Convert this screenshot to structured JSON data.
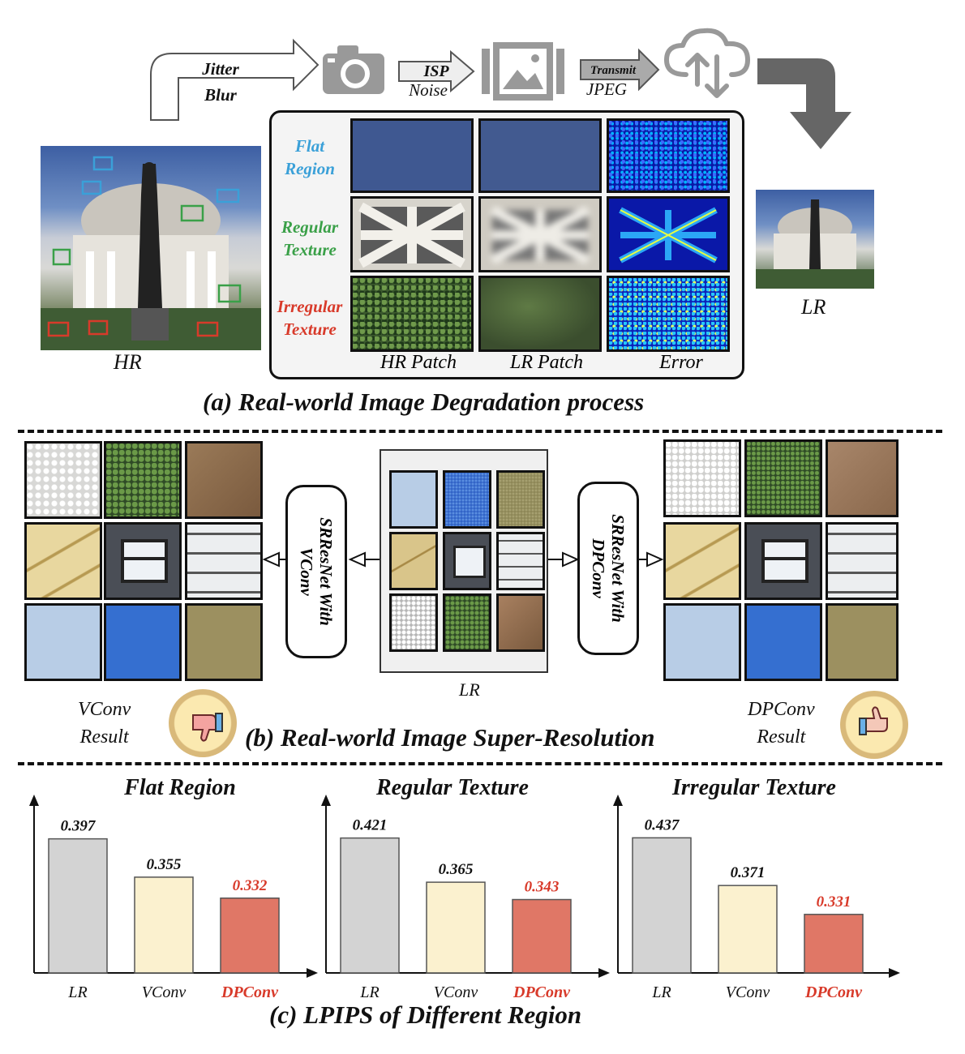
{
  "section_a": {
    "title": "(a) Real-world Image Degradation process",
    "pipeline": {
      "step1_top": "Jitter",
      "step1_bottom": "Blur",
      "step2_top": "ISP",
      "step2_bottom": "Noise",
      "step3_top": "Transmit",
      "step3_bottom": "JPEG"
    },
    "hr_label": "HR",
    "lr_label": "LR",
    "rows": [
      {
        "line1": "Flat",
        "line2": "Region",
        "color": "#3aa0d8"
      },
      {
        "line1": "Regular",
        "line2": "Texture",
        "color": "#3aa048"
      },
      {
        "line1": "Irregular",
        "line2": "Texture",
        "color": "#d83a2a"
      }
    ],
    "columns": [
      "HR Patch",
      "LR Patch",
      "Error"
    ]
  },
  "section_b": {
    "title": "(b) Real-world Image Super-Resolution",
    "left_model": {
      "line1": "SRResNet With",
      "line2": "VConv"
    },
    "right_model": {
      "line1": "SRResNet With",
      "line2": "DPConv"
    },
    "center_label": "LR",
    "left_result": {
      "line1": "VConv",
      "line2": "Result"
    },
    "right_result": {
      "line1": "DPConv",
      "line2": "Result"
    }
  },
  "section_c": {
    "title": "(c) LPIPS of Different Region"
  },
  "chart_data": [
    {
      "type": "bar",
      "title": "Flat Region",
      "categories": [
        "LR",
        "VConv",
        "DPConv"
      ],
      "values": [
        0.397,
        0.355,
        0.332
      ],
      "value_labels": [
        "0.397",
        "0.355",
        "0.332"
      ],
      "colors": [
        "#d3d3d3",
        "#fbf1cf",
        "#e07766"
      ],
      "highlight_color": "#d83a2a",
      "ylim": [
        0.25,
        0.41
      ]
    },
    {
      "type": "bar",
      "title": "Regular Texture",
      "categories": [
        "LR",
        "VConv",
        "DPConv"
      ],
      "values": [
        0.421,
        0.365,
        0.343
      ],
      "value_labels": [
        "0.421",
        "0.365",
        "0.343"
      ],
      "colors": [
        "#d3d3d3",
        "#fbf1cf",
        "#e07766"
      ],
      "highlight_color": "#d83a2a",
      "ylim": [
        0.25,
        0.435
      ]
    },
    {
      "type": "bar",
      "title": "Irregular Texture",
      "categories": [
        "LR",
        "VConv",
        "DPConv"
      ],
      "values": [
        0.437,
        0.371,
        0.331
      ],
      "value_labels": [
        "0.437",
        "0.371",
        "0.331"
      ],
      "colors": [
        "#d3d3d3",
        "#fbf1cf",
        "#e07766"
      ],
      "highlight_color": "#d83a2a",
      "ylim": [
        0.25,
        0.452
      ]
    }
  ]
}
